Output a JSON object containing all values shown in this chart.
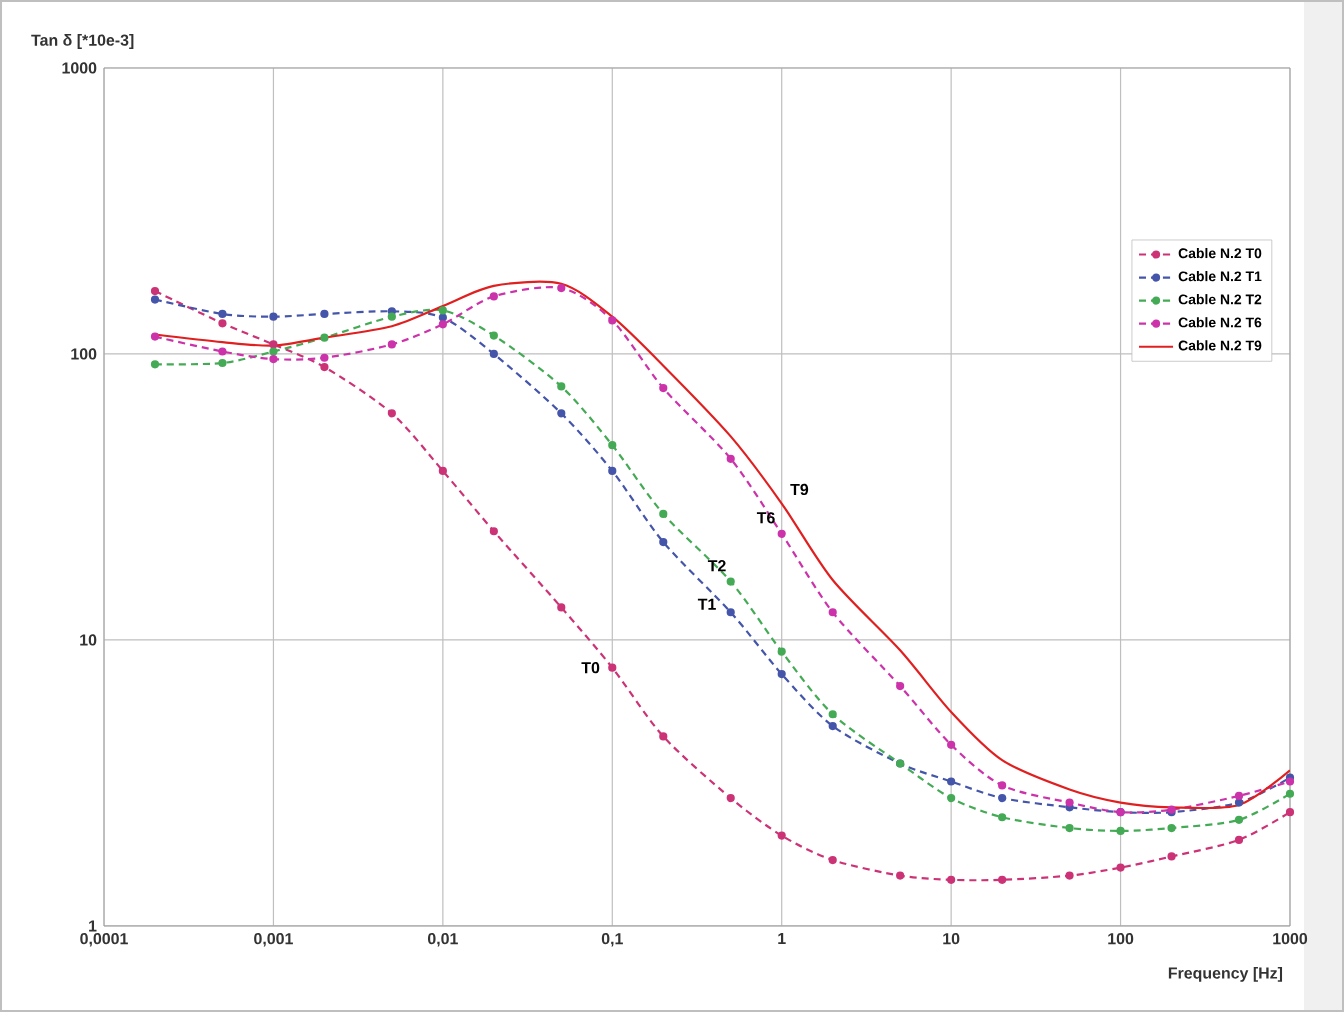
{
  "chart_data": {
    "type": "line",
    "ylabel": "Tan δ [*10e-3]",
    "xlabel": "Frequency [Hz]",
    "log": "xy",
    "grid": true,
    "legend": "top right",
    "x": [
      0.0002,
      0.0005,
      0.001,
      0.002,
      0.005,
      0.01,
      0.02,
      0.05,
      0.1,
      0.2,
      0.5,
      1,
      2,
      5,
      10,
      20,
      50,
      100,
      200,
      500,
      1000
    ],
    "xlim": [
      0.0001,
      1000
    ],
    "xticks": [
      {
        "value": 0.0001,
        "label": "0,0001"
      },
      {
        "value": 0.001,
        "label": "0,001"
      },
      {
        "value": 0.01,
        "label": "0,01"
      },
      {
        "value": 0.1,
        "label": "0,1"
      },
      1,
      10,
      100,
      1000
    ],
    "ylim": [
      1,
      1000
    ],
    "yticks": [
      1,
      10,
      100,
      1000
    ],
    "series": [
      {
        "name": "Cable N.2 T0",
        "color": "#cc3377",
        "line_style": "dashed",
        "marker": "circle",
        "values": [
          166,
          128,
          108,
          90,
          62,
          39,
          24,
          13,
          8,
          4.6,
          2.8,
          2.07,
          1.7,
          1.5,
          1.45,
          1.45,
          1.5,
          1.6,
          1.75,
          2.0,
          2.5
        ]
      },
      {
        "name": "Cable N.2 T1",
        "color": "#4455aa",
        "line_style": "dashed",
        "marker": "circle",
        "values": [
          155,
          138,
          135,
          138,
          141,
          134,
          100,
          62,
          39,
          22,
          12.5,
          7.6,
          5.0,
          3.7,
          3.2,
          2.8,
          2.6,
          2.5,
          2.5,
          2.7,
          3.3
        ]
      },
      {
        "name": "Cable N.2 T2",
        "color": "#44aa55",
        "line_style": "dashed",
        "marker": "circle",
        "values": [
          92,
          93,
          102,
          114,
          135,
          142,
          116,
          77,
          48,
          27.6,
          16,
          9.1,
          5.5,
          3.7,
          2.8,
          2.4,
          2.2,
          2.15,
          2.2,
          2.35,
          2.9
        ]
      },
      {
        "name": "Cable N.2 T6",
        "color": "#cc33aa",
        "line_style": "dashed",
        "marker": "circle",
        "values": [
          115,
          102,
          96,
          97,
          108,
          127,
          159,
          170,
          131,
          76,
          43,
          23.5,
          12.5,
          6.9,
          4.3,
          3.1,
          2.7,
          2.5,
          2.55,
          2.85,
          3.2
        ]
      },
      {
        "name": "Cable N.2 T9",
        "color": "#e02020",
        "line_style": "solid",
        "marker": "none",
        "values": [
          117,
          110,
          107,
          114,
          125,
          147,
          173,
          176,
          135,
          91,
          51.5,
          30,
          16.2,
          9.2,
          5.6,
          3.8,
          3.0,
          2.7,
          2.6,
          2.65,
          3.5
        ]
      }
    ],
    "annotations": [
      {
        "text": "T0",
        "x": 0.1,
        "y": 8
      },
      {
        "text": "T1",
        "x": 0.5,
        "y": 12.5
      },
      {
        "text": "T2",
        "x": 0.5,
        "y": 16
      },
      {
        "text": "T6",
        "x": 1,
        "y": 23.5
      },
      {
        "text": "T9",
        "x": 1,
        "y": 30
      }
    ]
  }
}
